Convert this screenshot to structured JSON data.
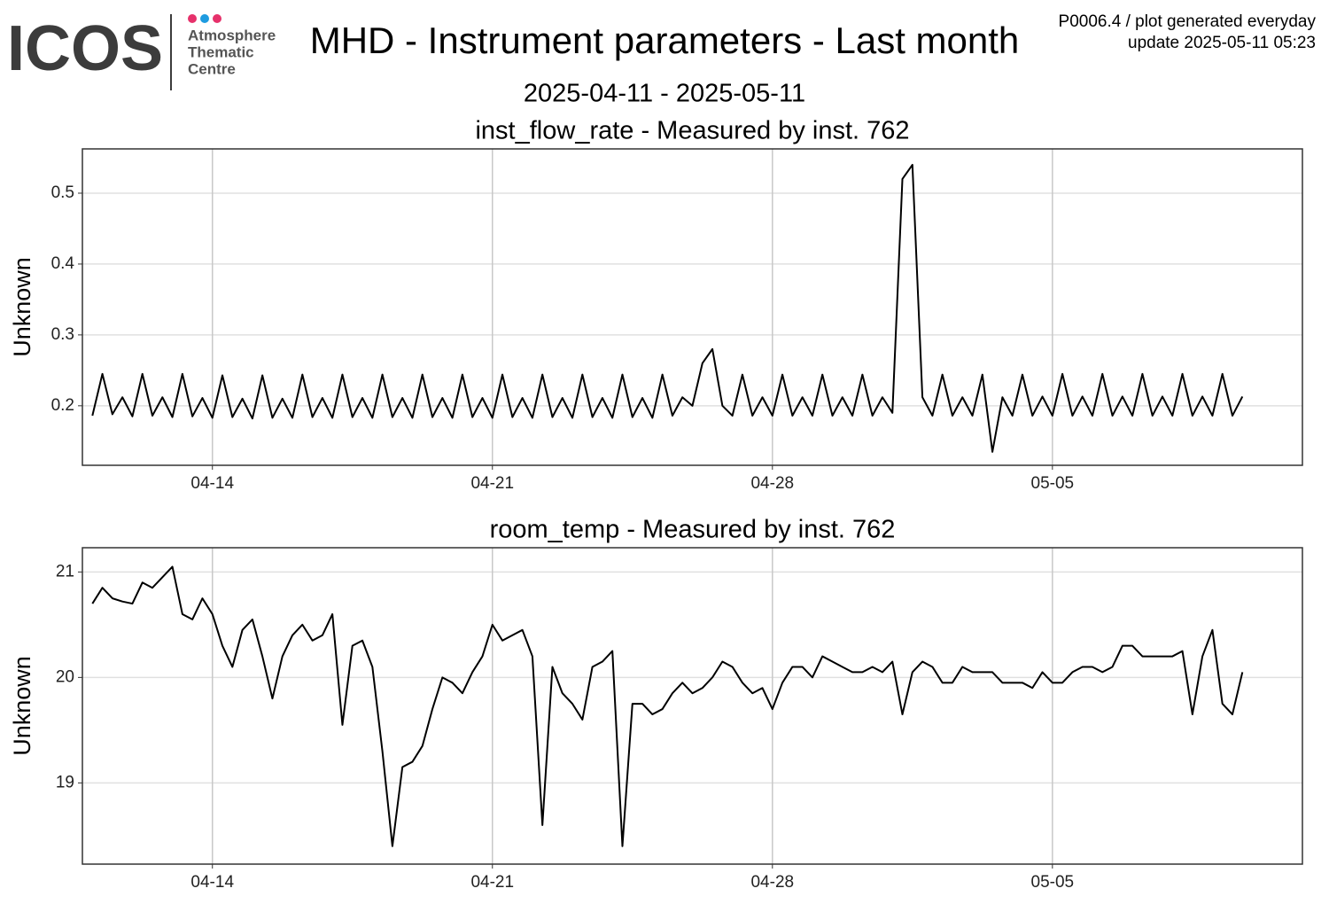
{
  "header": {
    "logo": "ICOS",
    "logo_lines": [
      "Atmosphere",
      "Thematic",
      "Centre"
    ],
    "title": "MHD - Instrument parameters - Last month",
    "subtitle": "2025-04-11 - 2025-05-11",
    "note_lines": [
      "P0006.4 / plot generated everyday",
      "update  2025-05-11 05:23"
    ]
  },
  "chart_data": [
    {
      "type": "line",
      "title": "inst_flow_rate - Measured by inst. 762",
      "y_label": "Unknown",
      "grid": true,
      "xlim": [
        "04-10 18:00",
        "05-11 06:00"
      ],
      "xticks": [
        "04-14",
        "04-21",
        "04-28",
        "05-05"
      ],
      "ylim": [
        0.116,
        0.5625
      ],
      "yticks": [
        0.2,
        0.3,
        0.4,
        0.5
      ],
      "x": [
        "04-11 00:00",
        "04-11 06:00",
        "04-11 12:00",
        "04-11 18:00",
        "04-12 00:00",
        "04-12 06:00",
        "04-12 12:00",
        "04-12 18:00",
        "04-13 00:00",
        "04-13 06:00",
        "04-13 12:00",
        "04-13 18:00",
        "04-14 00:00",
        "04-14 06:00",
        "04-14 12:00",
        "04-14 18:00",
        "04-15 00:00",
        "04-15 06:00",
        "04-15 12:00",
        "04-15 18:00",
        "04-16 00:00",
        "04-16 06:00",
        "04-16 12:00",
        "04-16 18:00",
        "04-17 00:00",
        "04-17 06:00",
        "04-17 12:00",
        "04-17 18:00",
        "04-18 00:00",
        "04-18 06:00",
        "04-18 12:00",
        "04-18 18:00",
        "04-19 00:00",
        "04-19 06:00",
        "04-19 12:00",
        "04-19 18:00",
        "04-20 00:00",
        "04-20 06:00",
        "04-20 12:00",
        "04-20 18:00",
        "04-21 00:00",
        "04-21 06:00",
        "04-21 12:00",
        "04-21 18:00",
        "04-22 00:00",
        "04-22 06:00",
        "04-22 12:00",
        "04-22 18:00",
        "04-23 00:00",
        "04-23 06:00",
        "04-23 12:00",
        "04-23 18:00",
        "04-24 00:00",
        "04-24 06:00",
        "04-24 12:00",
        "04-24 18:00",
        "04-25 00:00",
        "04-25 06:00",
        "04-25 12:00",
        "04-25 18:00",
        "04-26 00:00",
        "04-26 06:00",
        "04-26 12:00",
        "04-26 18:00",
        "04-27 00:00",
        "04-27 06:00",
        "04-27 12:00",
        "04-27 18:00",
        "04-28 00:00",
        "04-28 06:00",
        "04-28 12:00",
        "04-28 18:00",
        "04-29 00:00",
        "04-29 06:00",
        "04-29 12:00",
        "04-29 18:00",
        "04-30 00:00",
        "04-30 06:00",
        "04-30 12:00",
        "04-30 18:00",
        "05-01 00:00",
        "05-01 06:00",
        "05-01 12:00",
        "05-01 18:00",
        "05-02 00:00",
        "05-02 06:00",
        "05-02 12:00",
        "05-02 18:00",
        "05-03 00:00",
        "05-03 06:00",
        "05-03 12:00",
        "05-03 18:00",
        "05-04 00:00",
        "05-04 06:00",
        "05-04 12:00",
        "05-04 18:00",
        "05-05 00:00",
        "05-05 06:00",
        "05-05 12:00",
        "05-05 18:00",
        "05-06 00:00",
        "05-06 06:00",
        "05-06 12:00",
        "05-06 18:00",
        "05-07 00:00",
        "05-07 06:00",
        "05-07 12:00",
        "05-07 18:00",
        "05-08 00:00",
        "05-08 06:00",
        "05-08 12:00",
        "05-08 18:00",
        "05-09 00:00",
        "05-09 06:00",
        "05-09 12:00",
        "05-09 18:00"
      ],
      "series": [
        {
          "color": "#000000",
          "values": [
            0.186,
            0.245,
            0.188,
            0.212,
            0.185,
            0.245,
            0.186,
            0.212,
            0.184,
            0.245,
            0.185,
            0.211,
            0.183,
            0.243,
            0.184,
            0.21,
            0.182,
            0.243,
            0.183,
            0.21,
            0.183,
            0.244,
            0.184,
            0.211,
            0.183,
            0.244,
            0.184,
            0.211,
            0.183,
            0.244,
            0.184,
            0.211,
            0.183,
            0.244,
            0.184,
            0.211,
            0.183,
            0.244,
            0.184,
            0.211,
            0.183,
            0.244,
            0.184,
            0.211,
            0.183,
            0.244,
            0.184,
            0.211,
            0.183,
            0.244,
            0.184,
            0.211,
            0.183,
            0.244,
            0.184,
            0.211,
            0.183,
            0.244,
            0.186,
            0.212,
            0.2,
            0.26,
            0.28,
            0.2,
            0.186,
            0.244,
            0.186,
            0.212,
            0.186,
            0.244,
            0.186,
            0.212,
            0.186,
            0.244,
            0.186,
            0.212,
            0.186,
            0.244,
            0.186,
            0.212,
            0.19,
            0.52,
            0.54,
            0.212,
            0.186,
            0.244,
            0.186,
            0.212,
            0.186,
            0.244,
            0.135,
            0.212,
            0.186,
            0.244,
            0.186,
            0.213,
            0.186,
            0.245,
            0.186,
            0.213,
            0.186,
            0.245,
            0.186,
            0.213,
            0.186,
            0.245,
            0.186,
            0.213,
            0.186,
            0.245,
            0.186,
            0.213,
            0.186,
            0.245,
            0.186,
            0.213
          ]
        }
      ]
    },
    {
      "type": "line",
      "title": "room_temp - Measured by inst. 762",
      "y_label": "Unknown",
      "grid": true,
      "xlim": [
        "04-10 18:00",
        "05-11 06:00"
      ],
      "xticks": [
        "04-14",
        "04-21",
        "04-28",
        "05-05"
      ],
      "ylim": [
        18.23,
        21.23
      ],
      "yticks": [
        19,
        20,
        21
      ],
      "x": [
        "04-11 00:00",
        "04-11 06:00",
        "04-11 12:00",
        "04-11 18:00",
        "04-12 00:00",
        "04-12 06:00",
        "04-12 12:00",
        "04-12 18:00",
        "04-13 00:00",
        "04-13 06:00",
        "04-13 12:00",
        "04-13 18:00",
        "04-14 00:00",
        "04-14 06:00",
        "04-14 12:00",
        "04-14 18:00",
        "04-15 00:00",
        "04-15 06:00",
        "04-15 12:00",
        "04-15 18:00",
        "04-16 00:00",
        "04-16 06:00",
        "04-16 12:00",
        "04-16 18:00",
        "04-17 00:00",
        "04-17 06:00",
        "04-17 12:00",
        "04-17 18:00",
        "04-18 00:00",
        "04-18 06:00",
        "04-18 12:00",
        "04-18 18:00",
        "04-19 00:00",
        "04-19 06:00",
        "04-19 12:00",
        "04-19 18:00",
        "04-20 00:00",
        "04-20 06:00",
        "04-20 12:00",
        "04-20 18:00",
        "04-21 00:00",
        "04-21 06:00",
        "04-21 12:00",
        "04-21 18:00",
        "04-22 00:00",
        "04-22 06:00",
        "04-22 12:00",
        "04-22 18:00",
        "04-23 00:00",
        "04-23 06:00",
        "04-23 12:00",
        "04-23 18:00",
        "04-24 00:00",
        "04-24 06:00",
        "04-24 12:00",
        "04-24 18:00",
        "04-25 00:00",
        "04-25 06:00",
        "04-25 12:00",
        "04-25 18:00",
        "04-26 00:00",
        "04-26 06:00",
        "04-26 12:00",
        "04-26 18:00",
        "04-27 00:00",
        "04-27 06:00",
        "04-27 12:00",
        "04-27 18:00",
        "04-28 00:00",
        "04-28 06:00",
        "04-28 12:00",
        "04-28 18:00",
        "04-29 00:00",
        "04-29 06:00",
        "04-29 12:00",
        "04-29 18:00",
        "04-30 00:00",
        "04-30 06:00",
        "04-30 12:00",
        "04-30 18:00",
        "05-01 00:00",
        "05-01 06:00",
        "05-01 12:00",
        "05-01 18:00",
        "05-02 00:00",
        "05-02 06:00",
        "05-02 12:00",
        "05-02 18:00",
        "05-03 00:00",
        "05-03 06:00",
        "05-03 12:00",
        "05-03 18:00",
        "05-04 00:00",
        "05-04 06:00",
        "05-04 12:00",
        "05-04 18:00",
        "05-05 00:00",
        "05-05 06:00",
        "05-05 12:00",
        "05-05 18:00",
        "05-06 00:00",
        "05-06 06:00",
        "05-06 12:00",
        "05-06 18:00",
        "05-07 00:00",
        "05-07 06:00",
        "05-07 12:00",
        "05-07 18:00",
        "05-08 00:00",
        "05-08 06:00",
        "05-08 12:00",
        "05-08 18:00",
        "05-09 00:00",
        "05-09 06:00",
        "05-09 12:00",
        "05-09 18:00"
      ],
      "series": [
        {
          "color": "#000000",
          "values": [
            20.7,
            20.85,
            20.75,
            20.72,
            20.7,
            20.9,
            20.85,
            20.95,
            21.05,
            20.6,
            20.55,
            20.75,
            20.6,
            20.3,
            20.1,
            20.45,
            20.55,
            20.2,
            19.8,
            20.2,
            20.4,
            20.5,
            20.35,
            20.4,
            20.6,
            19.55,
            20.3,
            20.35,
            20.1,
            19.3,
            18.4,
            19.15,
            19.2,
            19.35,
            19.7,
            20.0,
            19.95,
            19.85,
            20.05,
            20.2,
            20.5,
            20.35,
            20.4,
            20.45,
            20.2,
            18.6,
            20.1,
            19.85,
            19.75,
            19.6,
            20.1,
            20.15,
            20.25,
            18.4,
            19.75,
            19.75,
            19.65,
            19.7,
            19.85,
            19.95,
            19.85,
            19.9,
            20.0,
            20.15,
            20.1,
            19.95,
            19.85,
            19.9,
            19.7,
            19.95,
            20.1,
            20.1,
            20.0,
            20.2,
            20.15,
            20.1,
            20.05,
            20.05,
            20.1,
            20.05,
            20.15,
            19.65,
            20.05,
            20.15,
            20.1,
            19.95,
            19.95,
            20.1,
            20.05,
            20.05,
            20.05,
            19.95,
            19.95,
            19.95,
            19.9,
            20.05,
            19.95,
            19.95,
            20.05,
            20.1,
            20.1,
            20.05,
            20.1,
            20.3,
            20.3,
            20.2,
            20.2,
            20.2,
            20.2,
            20.25,
            19.65,
            20.2,
            20.45,
            19.75,
            19.65,
            20.05
          ]
        }
      ]
    }
  ]
}
